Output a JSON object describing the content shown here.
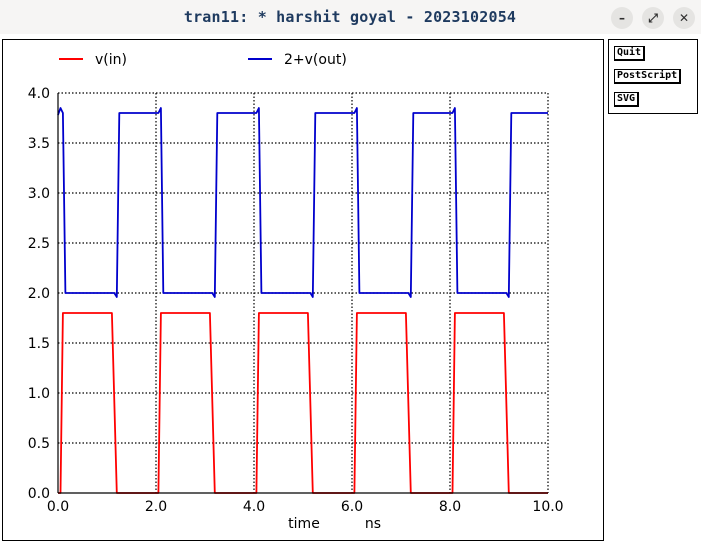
{
  "window": {
    "title": "tran11: * harshit goyal - 2023102054",
    "minimize_label": "–",
    "maximize_label": "⤢",
    "close_label": "✕"
  },
  "buttons": {
    "quit": "Quit",
    "postscript": "PostScript",
    "svg": "SVG"
  },
  "chart_data": {
    "type": "line",
    "xlabel": "time",
    "xunit": "ns",
    "xlim": [
      0,
      10
    ],
    "ylim": [
      0,
      4
    ],
    "x_ticks": [
      "0.0",
      "2.0",
      "4.0",
      "6.0",
      "8.0",
      "10.0"
    ],
    "y_ticks": [
      "0.0",
      "0.5",
      "1.0",
      "1.5",
      "2.0",
      "2.5",
      "3.0",
      "3.5",
      "4.0"
    ],
    "grid": true,
    "legend": "top",
    "series": [
      {
        "name": "v(in)",
        "color": "#ff0000",
        "points": [
          [
            0,
            0
          ],
          [
            0.05,
            0
          ],
          [
            0.1,
            1.8
          ],
          [
            1.1,
            1.8
          ],
          [
            1.2,
            0
          ],
          [
            2.05,
            0
          ],
          [
            2.1,
            1.8
          ],
          [
            3.1,
            1.8
          ],
          [
            3.2,
            0
          ],
          [
            4.05,
            0
          ],
          [
            4.1,
            1.8
          ],
          [
            5.1,
            1.8
          ],
          [
            5.2,
            0
          ],
          [
            6.05,
            0
          ],
          [
            6.1,
            1.8
          ],
          [
            7.1,
            1.8
          ],
          [
            7.2,
            0
          ],
          [
            8.05,
            0
          ],
          [
            8.1,
            1.8
          ],
          [
            9.1,
            1.8
          ],
          [
            9.2,
            0
          ],
          [
            10,
            0
          ]
        ]
      },
      {
        "name": "2+v(out)",
        "color": "#0000cc",
        "points": [
          [
            0,
            3.78
          ],
          [
            0.05,
            3.85
          ],
          [
            0.1,
            3.8
          ],
          [
            0.15,
            2.0
          ],
          [
            1.15,
            2.0
          ],
          [
            1.2,
            1.96
          ],
          [
            1.25,
            3.8
          ],
          [
            2.05,
            3.8
          ],
          [
            2.1,
            3.85
          ],
          [
            2.15,
            2.0
          ],
          [
            3.15,
            2.0
          ],
          [
            3.2,
            1.96
          ],
          [
            3.25,
            3.8
          ],
          [
            4.05,
            3.8
          ],
          [
            4.1,
            3.85
          ],
          [
            4.15,
            2.0
          ],
          [
            5.15,
            2.0
          ],
          [
            5.2,
            1.96
          ],
          [
            5.25,
            3.8
          ],
          [
            6.05,
            3.8
          ],
          [
            6.1,
            3.85
          ],
          [
            6.15,
            2.0
          ],
          [
            7.15,
            2.0
          ],
          [
            7.2,
            1.96
          ],
          [
            7.25,
            3.8
          ],
          [
            8.05,
            3.8
          ],
          [
            8.1,
            3.85
          ],
          [
            8.15,
            2.0
          ],
          [
            9.15,
            2.0
          ],
          [
            9.2,
            1.96
          ],
          [
            9.25,
            3.8
          ],
          [
            10,
            3.8
          ]
        ]
      }
    ]
  }
}
